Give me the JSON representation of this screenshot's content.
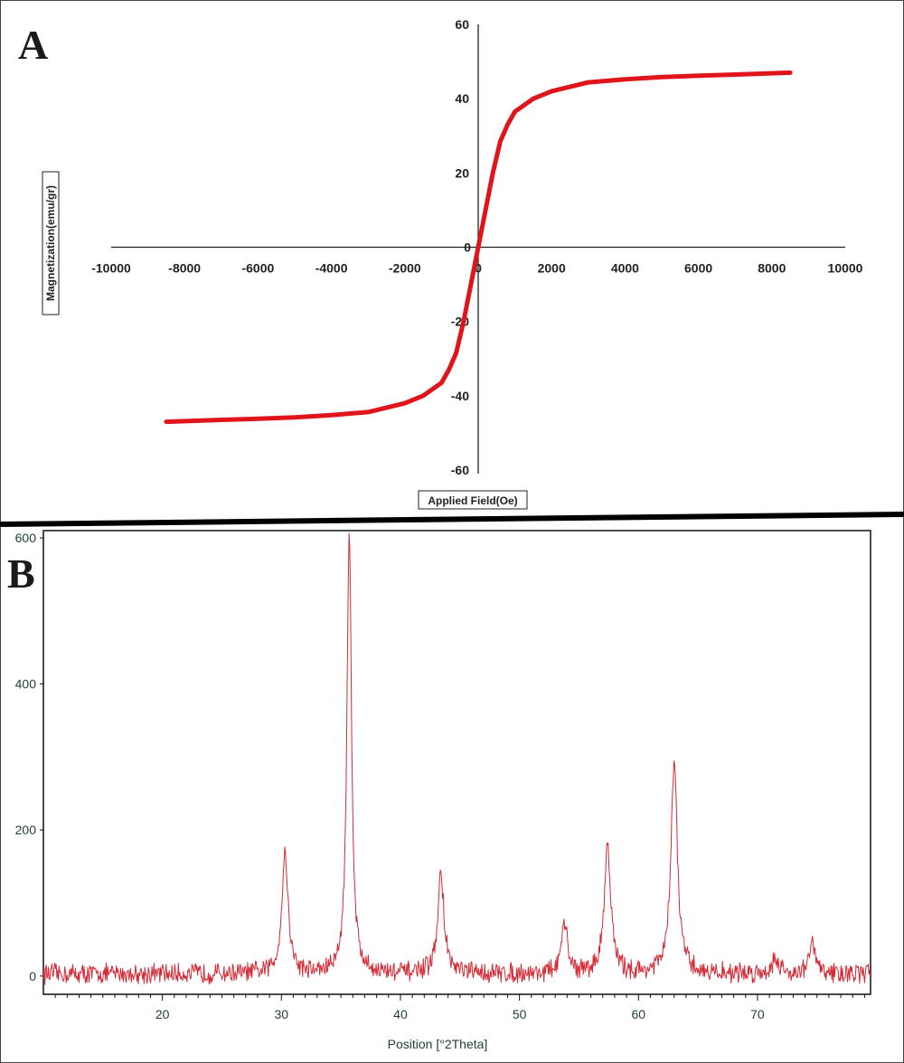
{
  "chart_data": [
    {
      "panel": "A",
      "type": "line",
      "xlabel": "Applied Field(Oe)",
      "ylabel": "Magnetization(emu/gr)",
      "xlim": [
        -10000,
        10000
      ],
      "ylim": [
        -60,
        60
      ],
      "xticks": [
        -10000,
        -8000,
        -6000,
        -4000,
        -2000,
        0,
        2000,
        4000,
        6000,
        8000,
        10000
      ],
      "yticks": [
        -60,
        -40,
        -20,
        0,
        20,
        40,
        60
      ],
      "grid": false,
      "color": "#e0141b",
      "series": [
        {
          "x": [
            -8500,
            -7000,
            -6000,
            -5000,
            -4000,
            -3000,
            -2000,
            -1500,
            -1000,
            -800,
            -600,
            -400,
            -200,
            0,
            200,
            400,
            600,
            800,
            1000,
            1500,
            2000,
            3000,
            4000,
            5000,
            6000,
            7000,
            8500
          ],
          "y": [
            -47,
            -46.5,
            -46.2,
            -45.8,
            -45.2,
            -44.4,
            -42,
            -40,
            -36.5,
            -33,
            -28.5,
            -20,
            -10,
            0,
            10,
            20,
            28.5,
            33,
            36.5,
            40,
            42,
            44.4,
            45.2,
            45.8,
            46.2,
            46.5,
            47
          ]
        }
      ]
    },
    {
      "panel": "B",
      "type": "line",
      "xlabel": "Position [°2Theta]",
      "ylabel": "",
      "xlim": [
        10,
        79.5
      ],
      "ylim": [
        -25,
        610
      ],
      "xticks": [
        20,
        30,
        40,
        50,
        60,
        70
      ],
      "yticks": [
        0,
        200,
        400,
        600
      ],
      "grid": false,
      "color": "#d42a35",
      "background_noise": 12,
      "peaks": [
        {
          "x": 30.3,
          "y": 165
        },
        {
          "x": 35.7,
          "y": 605
        },
        {
          "x": 43.4,
          "y": 135
        },
        {
          "x": 53.8,
          "y": 65
        },
        {
          "x": 57.4,
          "y": 180
        },
        {
          "x": 63.0,
          "y": 290
        },
        {
          "x": 71.5,
          "y": 22
        },
        {
          "x": 74.6,
          "y": 40
        }
      ]
    }
  ],
  "panel_labels": {
    "a": "A",
    "b": "B"
  }
}
